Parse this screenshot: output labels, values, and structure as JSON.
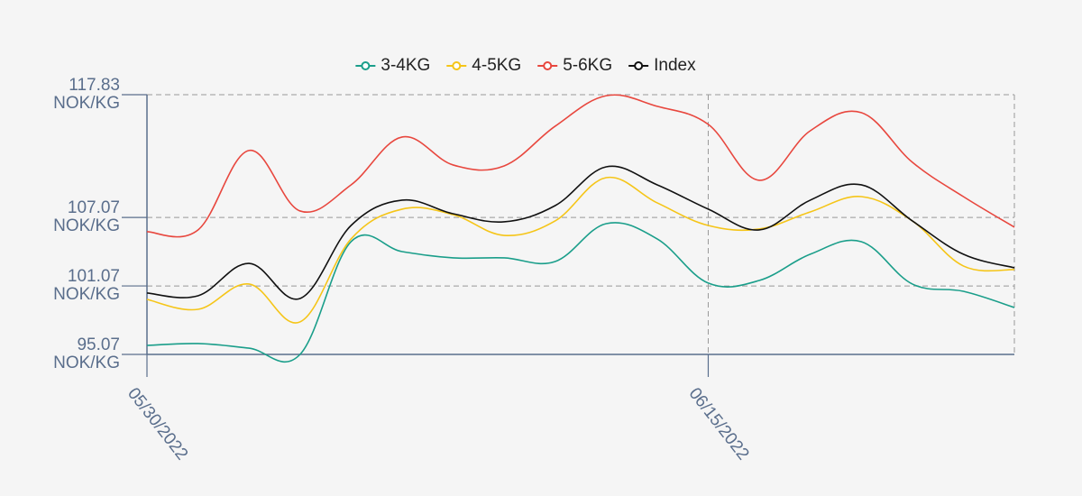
{
  "chart_data": {
    "type": "line",
    "categories": [
      "05/30/2022",
      null,
      null,
      null,
      null,
      null,
      null,
      null,
      null,
      null,
      null,
      "06/15/2022",
      null,
      null,
      null,
      null,
      null,
      null
    ],
    "series": [
      {
        "name": "3-4KG",
        "color": "#1a9e8a",
        "values": [
          95.86,
          96.02,
          95.62,
          95.07,
          104.95,
          104.08,
          103.53,
          103.53,
          103.21,
          106.53,
          105.19,
          101.32,
          101.55,
          103.85,
          104.95,
          101.24,
          100.6,
          99.18
        ]
      },
      {
        "name": "4-5KG",
        "color": "#f5c518",
        "values": [
          99.89,
          99.02,
          101.24,
          97.92,
          105.19,
          107.8,
          107.32,
          105.5,
          106.77,
          110.56,
          108.35,
          106.37,
          106.06,
          107.56,
          108.9,
          106.77,
          102.82,
          102.5
        ]
      },
      {
        "name": "5-6KG",
        "color": "#e8473e",
        "values": [
          105.82,
          105.98,
          112.94,
          107.64,
          109.93,
          114.12,
          111.67,
          111.59,
          115.07,
          117.74,
          116.81,
          115.23,
          110.33,
          114.67,
          116.26,
          111.91,
          108.9,
          106.22
        ]
      },
      {
        "name": "Index",
        "color": "#111111",
        "values": [
          100.45,
          100.21,
          103.05,
          99.97,
          106.37,
          108.59,
          107.4,
          106.69,
          108.11,
          111.51,
          109.93,
          107.8,
          105.98,
          108.59,
          109.93,
          106.77,
          103.85,
          102.66
        ]
      }
    ],
    "ylim": [
      95.07,
      117.83
    ],
    "yticks": [
      {
        "value": 95.07,
        "label": "95.07\nNOK/KG"
      },
      {
        "value": 101.07,
        "label": "101.07\nNOK/KG"
      },
      {
        "value": 107.07,
        "label": "107.07\nNOK/KG"
      },
      {
        "value": 117.83,
        "label": "117.83\nNOK/KG"
      }
    ],
    "grid": true,
    "legend": "top"
  }
}
